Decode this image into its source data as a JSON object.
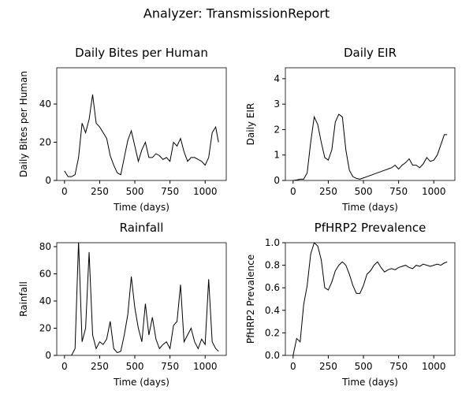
{
  "title": "Analyzer: TransmissionReport",
  "chart_data": [
    {
      "type": "line",
      "title": "Daily Bites per Human",
      "xlabel": "Time (days)",
      "ylabel": "Daily Bites per Human",
      "color": "#000000",
      "x": [
        0,
        25,
        50,
        75,
        100,
        125,
        150,
        175,
        200,
        225,
        250,
        275,
        300,
        325,
        350,
        375,
        400,
        425,
        450,
        475,
        500,
        525,
        550,
        575,
        600,
        625,
        650,
        675,
        700,
        725,
        750,
        775,
        800,
        825,
        850,
        875,
        900,
        925,
        950,
        975,
        1000,
        1025,
        1050,
        1075,
        1095
      ],
      "values": [
        5,
        2,
        2,
        3,
        12,
        30,
        25,
        32,
        45,
        30,
        28,
        25,
        22,
        13,
        8,
        4,
        3,
        12,
        21,
        26,
        18,
        10,
        16,
        20,
        12,
        12,
        14,
        13,
        11,
        12,
        10,
        20,
        18,
        22,
        15,
        10,
        12,
        12,
        11,
        10,
        8,
        12,
        25,
        28,
        20
      ],
      "xlim": [
        -55,
        1150
      ],
      "ylim": [
        0,
        59
      ],
      "xticks": [
        0,
        250,
        500,
        750,
        1000
      ],
      "yticks": [
        0,
        20,
        40
      ]
    },
    {
      "type": "line",
      "title": "Daily EIR",
      "xlabel": "Time (days)",
      "ylabel": "Daily EIR",
      "color": "#000000",
      "x": [
        0,
        25,
        50,
        75,
        100,
        125,
        150,
        175,
        200,
        225,
        250,
        275,
        300,
        325,
        350,
        375,
        400,
        425,
        450,
        475,
        500,
        525,
        550,
        575,
        600,
        625,
        650,
        675,
        700,
        725,
        750,
        775,
        800,
        825,
        850,
        875,
        900,
        925,
        950,
        975,
        1000,
        1025,
        1050,
        1075,
        1095
      ],
      "values": [
        0,
        0.02,
        0.05,
        0.05,
        0.3,
        1.5,
        2.5,
        2.2,
        1.5,
        0.9,
        0.8,
        1.2,
        2.3,
        2.6,
        2.5,
        1.2,
        0.4,
        0.15,
        0.08,
        0.05,
        0.1,
        0.15,
        0.2,
        0.25,
        0.3,
        0.35,
        0.4,
        0.45,
        0.5,
        0.6,
        0.45,
        0.6,
        0.7,
        0.85,
        0.6,
        0.6,
        0.5,
        0.65,
        0.9,
        0.75,
        0.8,
        1.0,
        1.4,
        1.8,
        1.8
      ],
      "xlim": [
        -55,
        1150
      ],
      "ylim": [
        0,
        4.43
      ],
      "xticks": [
        0,
        250,
        500,
        750,
        1000
      ],
      "yticks": [
        0,
        1,
        2,
        3,
        4
      ]
    },
    {
      "type": "line",
      "title": "Rainfall",
      "xlabel": "Time (days)",
      "ylabel": "Rainfall",
      "color": "#000000",
      "x": [
        0,
        25,
        50,
        75,
        100,
        125,
        150,
        175,
        200,
        225,
        250,
        275,
        300,
        325,
        350,
        375,
        400,
        425,
        450,
        475,
        500,
        525,
        550,
        575,
        600,
        625,
        650,
        675,
        700,
        725,
        750,
        775,
        800,
        825,
        850,
        875,
        900,
        925,
        950,
        975,
        1000,
        1025,
        1050,
        1075,
        1095
      ],
      "values": [
        0,
        0,
        0,
        5,
        84,
        10,
        20,
        76,
        15,
        5,
        10,
        8,
        12,
        25,
        5,
        2,
        3,
        15,
        30,
        58,
        35,
        20,
        10,
        38,
        15,
        28,
        12,
        5,
        8,
        10,
        5,
        22,
        25,
        52,
        10,
        15,
        20,
        10,
        5,
        12,
        8,
        56,
        10,
        5,
        3
      ],
      "xlim": [
        -55,
        1150
      ],
      "ylim": [
        0,
        82.9
      ],
      "xticks": [
        0,
        250,
        500,
        750,
        1000
      ],
      "yticks": [
        0,
        20,
        40,
        60,
        80
      ]
    },
    {
      "type": "line",
      "title": "PfHRP2 Prevalence",
      "xlabel": "Time (days)",
      "ylabel": "PfHRP2 Prevalence",
      "color": "#000000",
      "x": [
        0,
        25,
        50,
        75,
        100,
        125,
        150,
        175,
        200,
        225,
        250,
        275,
        300,
        325,
        350,
        375,
        400,
        425,
        450,
        475,
        500,
        525,
        550,
        575,
        600,
        625,
        650,
        675,
        700,
        725,
        750,
        775,
        800,
        825,
        850,
        875,
        900,
        925,
        950,
        975,
        1000,
        1025,
        1050,
        1075,
        1095
      ],
      "values": [
        0,
        0.15,
        0.12,
        0.45,
        0.62,
        0.9,
        1.0,
        0.97,
        0.85,
        0.6,
        0.58,
        0.65,
        0.75,
        0.8,
        0.83,
        0.8,
        0.72,
        0.62,
        0.55,
        0.55,
        0.62,
        0.72,
        0.75,
        0.8,
        0.83,
        0.78,
        0.74,
        0.76,
        0.77,
        0.76,
        0.78,
        0.79,
        0.8,
        0.78,
        0.77,
        0.8,
        0.79,
        0.81,
        0.8,
        0.79,
        0.8,
        0.81,
        0.8,
        0.82,
        0.83
      ],
      "xlim": [
        -55,
        1150
      ],
      "ylim": [
        0,
        1
      ],
      "xticks": [
        0,
        250,
        500,
        750,
        1000
      ],
      "yticks": [
        {
          "value": 0,
          "label": "0.0"
        },
        {
          "value": 0.2,
          "label": "0.2"
        },
        {
          "value": 0.4,
          "label": "0.4"
        },
        {
          "value": 0.6,
          "label": "0.6"
        },
        {
          "value": 0.8,
          "label": "0.8"
        },
        {
          "value": 1,
          "label": "1.0"
        }
      ]
    }
  ]
}
